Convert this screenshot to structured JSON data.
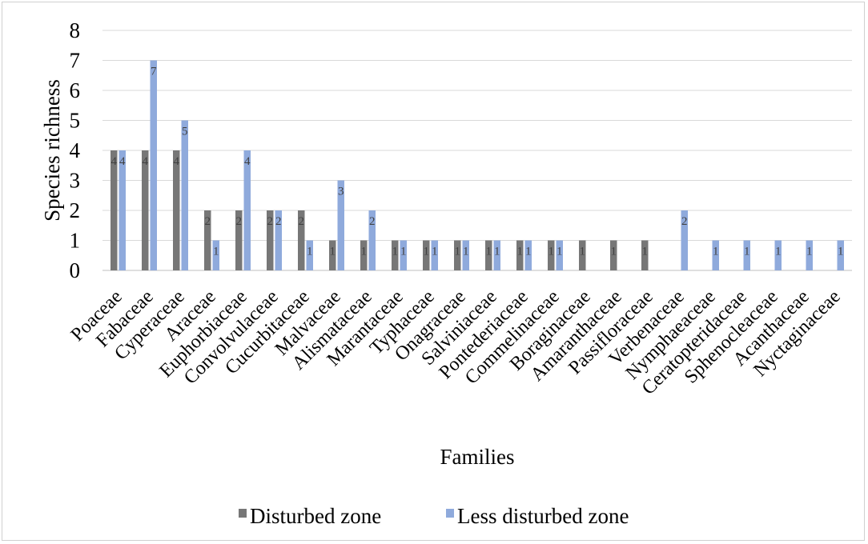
{
  "chart_data": {
    "type": "bar",
    "title": "",
    "xlabel": "Families",
    "ylabel": "Species richness",
    "ylim": [
      0,
      8
    ],
    "ytick_step": 1,
    "grid": true,
    "legend_position": "bottom",
    "data_labels": true,
    "categories": [
      "Poaceae",
      "Fabaceae",
      "Cyperaceae",
      "Araceae",
      "Euphorbiaceae",
      "Convolvulaceae",
      "Cucurbitaceae",
      "Malvaceae",
      "Alismataceae",
      "Marantaceae",
      "Typhaceae",
      "Onagraceae",
      "Salviniaceae",
      "Pontederiaceae",
      "Commelinaceae",
      "Boraginaceae",
      "Amaranthaceae",
      "Passifloraceae",
      "Verbenaceae",
      "Nymphaeaceae",
      "Ceratopteridaceae",
      "Sphenocleaceae",
      "Acanthaceae",
      "Nyctaginaceae"
    ],
    "series": [
      {
        "name": "Disturbed zone",
        "color": "#777777",
        "values": [
          4,
          4,
          4,
          2,
          2,
          2,
          2,
          1,
          1,
          1,
          1,
          1,
          1,
          1,
          1,
          1,
          1,
          1,
          0,
          0,
          0,
          0,
          0,
          0
        ]
      },
      {
        "name": "Less disturbed zone",
        "color": "#8faadc",
        "values": [
          4,
          7,
          5,
          1,
          4,
          2,
          1,
          3,
          2,
          1,
          1,
          1,
          1,
          1,
          1,
          0,
          0,
          0,
          2,
          1,
          1,
          1,
          1,
          1
        ]
      }
    ]
  }
}
